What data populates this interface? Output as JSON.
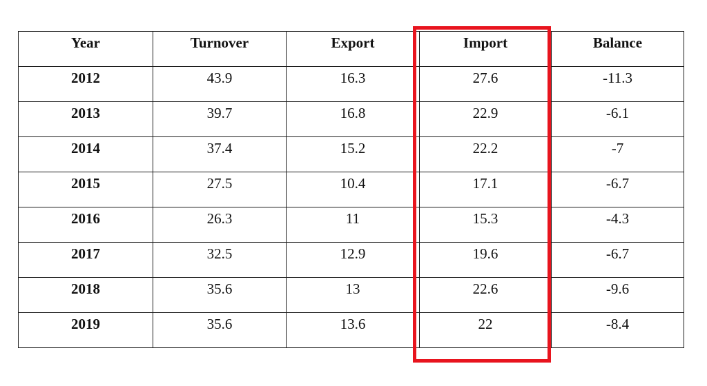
{
  "table": {
    "headers": [
      "Year",
      "Turnover",
      "Export",
      "Import",
      "Balance"
    ],
    "rows": [
      [
        "2012",
        "43.9",
        "16.3",
        "27.6",
        "-11.3"
      ],
      [
        "2013",
        "39.7",
        "16.8",
        "22.9",
        "-6.1"
      ],
      [
        "2014",
        "37.4",
        "15.2",
        "22.2",
        "-7"
      ],
      [
        "2015",
        "27.5",
        "10.4",
        "17.1",
        "-6.7"
      ],
      [
        "2016",
        "26.3",
        "11",
        "15.3",
        "-4.3"
      ],
      [
        "2017",
        "32.5",
        "12.9",
        "19.6",
        "-6.7"
      ],
      [
        "2018",
        "35.6",
        "13",
        "22.6",
        "-9.6"
      ],
      [
        "2019",
        "35.6",
        "13.6",
        "22",
        "-8.4"
      ]
    ]
  },
  "highlight": {
    "column": "Import",
    "color": "#e8141e"
  }
}
